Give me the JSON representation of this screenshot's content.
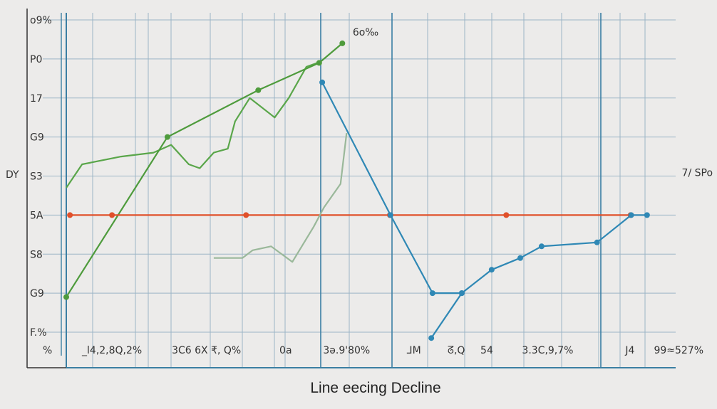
{
  "chart_data": {
    "type": "line",
    "title": "Line eecing Decline",
    "xlim": [
      0,
      100
    ],
    "ylim": [
      0,
      8
    ],
    "grid": true,
    "y_tick_labels": [
      {
        "y": 8,
        "label": "o9%"
      },
      {
        "y": 7,
        "label": "P0"
      },
      {
        "y": 6,
        "label": "17"
      },
      {
        "y": 5,
        "label": "G9"
      },
      {
        "y": 4,
        "label": "S3"
      },
      {
        "y": 3,
        "label": "5A"
      },
      {
        "y": 2,
        "label": "S8"
      },
      {
        "y": 1,
        "label": "G9"
      },
      {
        "y": 0,
        "label": "F.%"
      }
    ],
    "y_side_label": "DY",
    "x_tick_labels": [
      {
        "x": 7.5,
        "label": "_l4,2,8Q,2%"
      },
      {
        "x": 23,
        "label": "3C6  6X ₹, Q%"
      },
      {
        "x": 36,
        "label": "0a"
      },
      {
        "x": 46,
        "label": "3ə.9'80%"
      },
      {
        "x": 57,
        "label": "ᒧM"
      },
      {
        "x": 64,
        "label": "ᘔ,Q"
      },
      {
        "x": 69,
        "label": "54"
      },
      {
        "x": 79,
        "label": "3.3C,9,7%"
      },
      {
        "x": 92.5,
        "label": "J4"
      },
      {
        "x": 100.5,
        "label": "99≈527%"
      }
    ],
    "x_corner_label": "%",
    "annotations": [
      {
        "x": 47,
        "y": 7.6,
        "label": "6o‰"
      },
      {
        "x": 101,
        "y": 4.0,
        "label": "7/ SPo"
      }
    ],
    "series": [
      {
        "color": "#5aa64a",
        "markers": false,
        "points": [
          [
            0,
            3.7
          ],
          [
            2.6,
            4.3
          ],
          [
            9,
            4.5
          ],
          [
            14.3,
            4.6
          ],
          [
            17.2,
            4.8
          ],
          [
            20.1,
            4.3
          ],
          [
            21.9,
            4.2
          ],
          [
            24.2,
            4.6
          ],
          [
            26.5,
            4.7
          ],
          [
            27.7,
            5.4
          ],
          [
            30.1,
            6.0
          ],
          [
            34.2,
            5.5
          ],
          [
            36.5,
            6.0
          ],
          [
            39.4,
            6.8
          ],
          [
            41.2,
            6.9
          ]
        ]
      },
      {
        "color": "#4e9b3c",
        "markers": true,
        "points": [
          [
            0,
            0.9
          ],
          [
            16.6,
            5.0
          ],
          [
            31.5,
            6.2
          ],
          [
            41.5,
            6.9
          ],
          [
            45.3,
            7.4
          ]
        ]
      },
      {
        "color": "#e0502a",
        "markers": true,
        "points": [
          [
            0.6,
            3.0
          ],
          [
            7.5,
            3.0
          ],
          [
            29.5,
            3.0
          ],
          [
            53.1,
            3.0
          ],
          [
            72.2,
            3.0
          ],
          [
            92.6,
            3.0
          ]
        ]
      },
      {
        "color": "#9ab89a",
        "markers": false,
        "points": [
          [
            24.2,
            1.9
          ],
          [
            28.9,
            1.9
          ],
          [
            30.6,
            2.1
          ],
          [
            33.6,
            2.2
          ],
          [
            37.1,
            1.8
          ],
          [
            40.6,
            2.7
          ],
          [
            42.3,
            3.2
          ],
          [
            45,
            3.8
          ],
          [
            46,
            5.1
          ]
        ]
      },
      {
        "color": "#2f88b5",
        "markers": true,
        "points": [
          [
            42,
            6.4
          ],
          [
            53.2,
            3.0
          ],
          [
            60.1,
            1.0
          ],
          [
            64.9,
            1.0
          ],
          [
            69.8,
            1.6
          ],
          [
            74.5,
            1.9
          ],
          [
            78,
            2.2
          ],
          [
            87.1,
            2.3
          ],
          [
            92.7,
            3.0
          ],
          [
            95.3,
            3.0
          ]
        ]
      },
      {
        "color": "#2f88b5",
        "markers": true,
        "points": [
          [
            59.9,
            -0.15
          ],
          [
            64.9,
            1.0
          ]
        ]
      }
    ]
  }
}
